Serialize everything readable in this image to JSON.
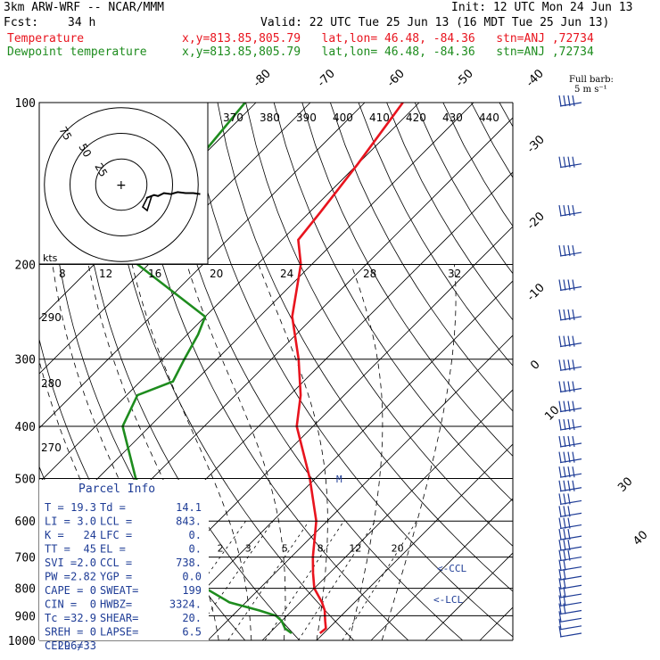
{
  "header": {
    "model": "3km ARW-WRF -- NCAR/MMM",
    "init": "Init: 12 UTC Mon 24 Jun 13",
    "fcst_label": "Fcst:",
    "fcst_value": "34 h",
    "valid": "Valid: 22 UTC Tue 25 Jun 13 (16 MDT Tue 25 Jun 13)",
    "temp_label": "Temperature",
    "temp_loc": "x,y=813.85,805.79   lat,lon= 46.48, -84.36   stn=ANJ ,72734",
    "dew_label": "Dewpoint temperature",
    "dew_loc": "x,y=813.85,805.79   lat,lon= 46.48, -84.36   stn=ANJ ,72734",
    "barb_legend_1": "Full barb:",
    "barb_legend_2": "5 m s⁻¹",
    "colors": {
      "temperature": "#e8141e",
      "dewpoint": "#1e8c1e",
      "parcel": "#1e3c96"
    }
  },
  "chart_data": {
    "type": "line",
    "ylabel": "",
    "pressure_ticks": [
      100,
      200,
      300,
      400,
      500,
      600,
      700,
      800,
      900,
      1000
    ],
    "ylim": [
      1000,
      100
    ],
    "isotherm_labels": [
      -80,
      -70,
      -60,
      -50,
      -40,
      -30,
      -20,
      -10,
      0,
      10,
      30,
      40
    ],
    "theta_labels": [
      370,
      380,
      390,
      400,
      410,
      420,
      430,
      440
    ],
    "theta_side_labels": [
      290,
      280,
      270
    ],
    "mixing_ratio_labels": [
      2,
      3,
      5,
      8,
      12,
      20
    ],
    "series": [
      {
        "name": "Temperature",
        "p": [
          100,
          130,
          160,
          180,
          200,
          250,
          300,
          350,
          400,
          500,
          600,
          700,
          750,
          800,
          850,
          880,
          900,
          920,
          950,
          970
        ],
        "t": [
          -63,
          -60,
          -58,
          -57,
          -52,
          -44,
          -35,
          -28,
          -23,
          -11,
          -2,
          4,
          7,
          10,
          14,
          16,
          17,
          18,
          19.5,
          19.3
        ]
      },
      {
        "name": "Dewpoint temperature",
        "p": [
          100,
          150,
          200,
          250,
          270,
          300,
          330,
          350,
          400,
          500,
          600,
          700,
          750,
          800,
          850,
          880,
          900,
          920,
          950,
          970
        ],
        "t": [
          -92,
          -89,
          -82,
          -60,
          -58,
          -56,
          -54,
          -58,
          -55,
          -43,
          -30,
          -20,
          -16,
          -10,
          -3,
          4,
          8,
          10,
          12,
          14.1
        ]
      }
    ],
    "hodograph": {
      "units_label": "kts",
      "ring_labels": [
        "75",
        "50",
        "25"
      ],
      "trace_u": [
        0,
        8,
        12,
        18,
        25,
        32,
        40,
        48,
        55
      ],
      "trace_v": [
        0,
        -3,
        -2,
        -5,
        -4,
        -6,
        -5,
        -5,
        -4
      ]
    },
    "wind_barbs": {
      "p": [
        100,
        130,
        160,
        190,
        220,
        250,
        280,
        310,
        340,
        370,
        400,
        430,
        460,
        490,
        520,
        550,
        580,
        610,
        640,
        670,
        700,
        730,
        760,
        790,
        820,
        850,
        880,
        910,
        940,
        970
      ],
      "speed_ms": [
        20,
        20,
        20,
        20,
        20,
        20,
        20,
        20,
        20,
        20,
        20,
        20,
        20,
        20,
        20,
        15,
        15,
        15,
        15,
        15,
        15,
        10,
        10,
        10,
        10,
        10,
        10,
        5,
        5,
        5
      ]
    },
    "annotations": [
      "<-CCL",
      "<-LCL",
      "M"
    ]
  },
  "parcel_info": {
    "title": "Parcel Info",
    "rows": [
      [
        "T  =",
        "19.3",
        "Td =",
        "14.1"
      ],
      [
        "LI =",
        "3.0",
        "LCL =",
        "843."
      ],
      [
        "K  =",
        "24",
        "LFC =",
        "0."
      ],
      [
        "TT =",
        "45",
        "EL  =",
        "0."
      ],
      [
        "SVI =",
        "2.0",
        "CCL =",
        "738."
      ],
      [
        "PW =",
        "2.82",
        "YGP =",
        "0.0"
      ],
      [
        "CAPE =",
        "0",
        "SWEAT=",
        "199"
      ],
      [
        "CIN  =",
        "0",
        "HWBZ=",
        "3324."
      ],
      [
        "Tc =",
        "32.9",
        "SHEAR=",
        "20."
      ],
      [
        "SREH =",
        "0",
        "LAPSE=",
        "6.5"
      ],
      [
        "CELL =",
        "296/33",
        "",
        ""
      ]
    ]
  }
}
